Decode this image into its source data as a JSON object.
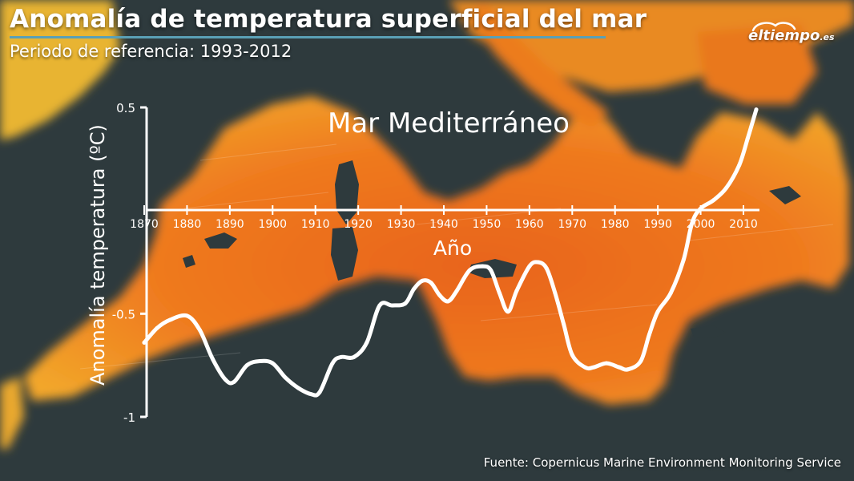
{
  "header": {
    "title": "Anomalía de temperatura superficial del mar",
    "subtitle": "Periodo de referencia: 1993-2012"
  },
  "logo": {
    "text": "eltiempo",
    "suffix": ".es"
  },
  "source": "Fuente: Copernicus Marine Environment Monitoring Service",
  "colors": {
    "sea_warm": "#e8741c",
    "land": "#2e3a3d",
    "line": "#ffffff",
    "accent": "#5aa0b6"
  },
  "chart_data": {
    "type": "line",
    "title": "Mar Mediterráneo",
    "xlabel": "Año",
    "ylabel": "Anomalía temperatura (ºC)",
    "xlim": [
      1870,
      2015
    ],
    "ylim": [
      -1,
      0.5
    ],
    "xticks": [
      1870,
      1880,
      1890,
      1900,
      1910,
      1920,
      1930,
      1940,
      1950,
      1960,
      1970,
      1980,
      1990,
      2000,
      2010
    ],
    "yticks": [
      0.5,
      -0.5,
      -1
    ],
    "grid": false,
    "series": [
      {
        "x": [
          1870,
          1873,
          1876,
          1880,
          1883,
          1886,
          1889,
          1891,
          1894,
          1897,
          1900,
          1903,
          1906,
          1909,
          1911,
          1914,
          1916,
          1919,
          1922,
          1925,
          1928,
          1931,
          1933,
          1935,
          1937,
          1939,
          1941,
          1943,
          1946,
          1949,
          1951,
          1953,
          1955,
          1957,
          1960,
          1962,
          1964,
          1966,
          1968,
          1970,
          1973,
          1975,
          1978,
          1981,
          1983,
          1986,
          1988,
          1990,
          1993,
          1996,
          1998,
          2000,
          2003,
          2006,
          2009,
          2011,
          2013
        ],
        "y": [
          -0.64,
          -0.57,
          -0.53,
          -0.51,
          -0.58,
          -0.72,
          -0.82,
          -0.83,
          -0.75,
          -0.73,
          -0.74,
          -0.81,
          -0.86,
          -0.89,
          -0.88,
          -0.74,
          -0.71,
          -0.71,
          -0.64,
          -0.46,
          -0.46,
          -0.45,
          -0.38,
          -0.34,
          -0.35,
          -0.41,
          -0.44,
          -0.39,
          -0.29,
          -0.27,
          -0.29,
          -0.4,
          -0.49,
          -0.39,
          -0.27,
          -0.25,
          -0.28,
          -0.4,
          -0.55,
          -0.7,
          -0.76,
          -0.76,
          -0.74,
          -0.76,
          -0.77,
          -0.73,
          -0.6,
          -0.49,
          -0.4,
          -0.24,
          -0.06,
          0.01,
          0.05,
          0.11,
          0.22,
          0.35,
          0.49
        ]
      }
    ]
  }
}
